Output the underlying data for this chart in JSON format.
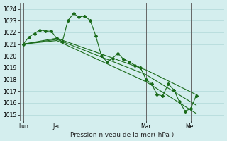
{
  "background_color": "#d4eeee",
  "grid_color": "#b0d8d8",
  "line_color": "#1a6b1a",
  "marker_color": "#1a6b1a",
  "xlabel": "Pression niveau de la mer( hPa )",
  "yticks": [
    1015,
    1016,
    1017,
    1018,
    1019,
    1020,
    1021,
    1022,
    1023,
    1024
  ],
  "ylim": [
    1014.5,
    1024.5
  ],
  "day_labels": [
    "Lun",
    "Jeu",
    "Mar",
    "Mer"
  ],
  "day_positions": [
    0,
    18,
    66,
    90
  ],
  "vline_positions": [
    0,
    18,
    66,
    90
  ],
  "xlim": [
    -2,
    108
  ],
  "series": [
    [
      [
        0,
        1021.0
      ],
      [
        3,
        1021.6
      ],
      [
        6,
        1021.9
      ],
      [
        9,
        1022.2
      ],
      [
        12,
        1022.1
      ],
      [
        15,
        1022.1
      ],
      [
        18,
        1021.5
      ],
      [
        21,
        1021.2
      ],
      [
        24,
        1023.0
      ],
      [
        27,
        1023.6
      ],
      [
        30,
        1023.3
      ],
      [
        33,
        1023.4
      ],
      [
        36,
        1023.0
      ],
      [
        39,
        1021.7
      ],
      [
        42,
        1020.0
      ],
      [
        45,
        1019.5
      ],
      [
        48,
        1019.8
      ],
      [
        51,
        1020.2
      ],
      [
        54,
        1019.7
      ],
      [
        57,
        1019.5
      ],
      [
        60,
        1019.2
      ],
      [
        63,
        1019.0
      ],
      [
        66,
        1018.0
      ],
      [
        69,
        1017.6
      ],
      [
        72,
        1016.7
      ],
      [
        75,
        1016.6
      ],
      [
        78,
        1017.6
      ],
      [
        81,
        1017.1
      ],
      [
        84,
        1016.1
      ],
      [
        87,
        1015.3
      ],
      [
        90,
        1015.5
      ],
      [
        93,
        1016.6
      ]
    ],
    [
      [
        0,
        1021.0
      ],
      [
        18,
        1021.5
      ],
      [
        66,
        1018.8
      ],
      [
        93,
        1016.7
      ]
    ],
    [
      [
        0,
        1021.0
      ],
      [
        18,
        1021.4
      ],
      [
        66,
        1018.4
      ],
      [
        93,
        1015.8
      ]
    ],
    [
      [
        0,
        1021.0
      ],
      [
        18,
        1021.3
      ],
      [
        66,
        1017.8
      ],
      [
        93,
        1015.1
      ]
    ]
  ]
}
